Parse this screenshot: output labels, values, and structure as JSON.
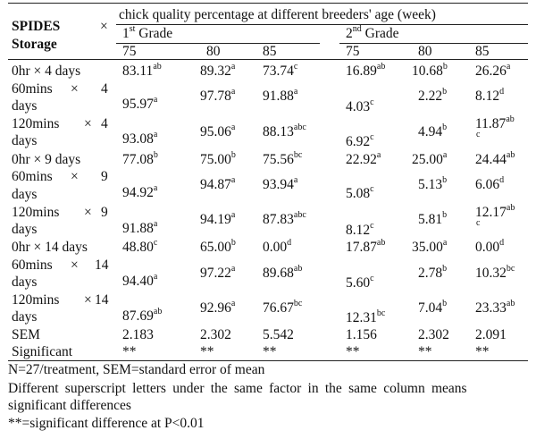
{
  "header": {
    "storage_title_1": "SPIDES",
    "storage_title_2": "Storage",
    "times_symbol": "×",
    "main_heading": "chick quality percentage at different breeders' age (week)",
    "grade1_number": "1",
    "grade1_sup": "st",
    "grade1_word": " Grade",
    "grade2_number": "2",
    "grade2_sup": "nd",
    "grade2_word": " Grade",
    "ages": [
      "75",
      "80",
      "85",
      "75",
      "80",
      "85"
    ]
  },
  "rows": [
    {
      "label_a": "0hr × 4 days",
      "label_b": "",
      "cells": [
        {
          "v": "83.11",
          "s": "ab"
        },
        {
          "v": "89.32",
          "s": "a"
        },
        {
          "v": "73.74",
          "s": "c"
        },
        {
          "v": "16.89",
          "s": "ab"
        },
        {
          "v": "10.68",
          "s": "b"
        },
        {
          "v": "26.26",
          "s": "a"
        }
      ]
    },
    {
      "label_a": "60mins",
      "label_x": "×",
      "label_n": "4",
      "label_b": "days",
      "cells": [
        {
          "v": "95.97",
          "s": "a"
        },
        {
          "v": "97.78",
          "s": "a"
        },
        {
          "v": "91.88",
          "s": "a"
        },
        {
          "v": "4.03",
          "s": "c"
        },
        {
          "v": "2.22",
          "s": "b"
        },
        {
          "v": "8.12",
          "s": "d"
        }
      ]
    },
    {
      "label_a": "120mins",
      "label_x": "×",
      "label_n": "4",
      "label_b": "days",
      "cells": [
        {
          "v": "93.08",
          "s": "a"
        },
        {
          "v": "95.06",
          "s": "a"
        },
        {
          "v": "88.13",
          "s": "abc"
        },
        {
          "v": "6.92",
          "s": "c"
        },
        {
          "v": "4.94",
          "s": "b"
        },
        {
          "v": "11.87",
          "s": "ab",
          "s2": "c"
        }
      ]
    },
    {
      "label_a": "0hr × 9 days",
      "label_b": "",
      "cells": [
        {
          "v": "77.08",
          "s": "b"
        },
        {
          "v": "75.00",
          "s": "b"
        },
        {
          "v": "75.56",
          "s": "bc"
        },
        {
          "v": "22.92",
          "s": "a"
        },
        {
          "v": "25.00",
          "s": "a"
        },
        {
          "v": "24.44",
          "s": "ab"
        }
      ]
    },
    {
      "label_a": "60mins",
      "label_x": "×",
      "label_n": "9",
      "label_b": "days",
      "cells": [
        {
          "v": "94.92",
          "s": "a"
        },
        {
          "v": "94.87",
          "s": "a"
        },
        {
          "v": "93.94",
          "s": "a"
        },
        {
          "v": "5.08",
          "s": "c"
        },
        {
          "v": "5.13",
          "s": "b"
        },
        {
          "v": "6.06",
          "s": "d"
        }
      ]
    },
    {
      "label_a": "120mins",
      "label_x": "×",
      "label_n": "9",
      "label_b": "days",
      "cells": [
        {
          "v": "91.88",
          "s": "a"
        },
        {
          "v": "94.19",
          "s": "a"
        },
        {
          "v": "87.83",
          "s": "abc"
        },
        {
          "v": "8.12",
          "s": "c"
        },
        {
          "v": "5.81",
          "s": "b"
        },
        {
          "v": "12.17",
          "s": "ab",
          "s2": "c"
        }
      ]
    },
    {
      "label_a": "0hr × 14 days",
      "label_b": "",
      "cells": [
        {
          "v": "48.80",
          "s": "c"
        },
        {
          "v": "65.00",
          "s": "b"
        },
        {
          "v": "0.00",
          "s": "d"
        },
        {
          "v": "17.87",
          "s": "ab"
        },
        {
          "v": "35.00",
          "s": "a"
        },
        {
          "v": "0.00",
          "s": "d"
        }
      ]
    },
    {
      "label_a": "60mins",
      "label_x": "×",
      "label_n": "14",
      "label_b": "days",
      "cells": [
        {
          "v": "94.40",
          "s": "a"
        },
        {
          "v": "97.22",
          "s": "a"
        },
        {
          "v": "89.68",
          "s": "ab"
        },
        {
          "v": "5.60",
          "s": "c"
        },
        {
          "v": "2.78",
          "s": "b"
        },
        {
          "v": "10.32",
          "s": "bc"
        }
      ]
    },
    {
      "label_a": "120mins",
      "label_x": "×",
      "label_n": "14",
      "label_b": "days",
      "cells": [
        {
          "v": "87.69",
          "s": "ab"
        },
        {
          "v": "92.96",
          "s": "a"
        },
        {
          "v": "76.67",
          "s": "bc"
        },
        {
          "v": "12.31",
          "s": "bc"
        },
        {
          "v": "7.04",
          "s": "b"
        },
        {
          "v": "23.33",
          "s": "ab"
        }
      ]
    }
  ],
  "sem": {
    "label": "SEM",
    "values": [
      "2.183",
      "2.302",
      "5.542",
      "1.156",
      "2.302",
      "2.091"
    ]
  },
  "significant": {
    "label": "Significant",
    "values": [
      "**",
      "**",
      "**",
      "**",
      "**",
      "**"
    ]
  },
  "notes": [
    "N=27/treatment, SEM=standard error of mean",
    "Different superscript letters under the same factor in the same column means",
    "significant differences",
    "**=significant difference at P<0.01"
  ]
}
